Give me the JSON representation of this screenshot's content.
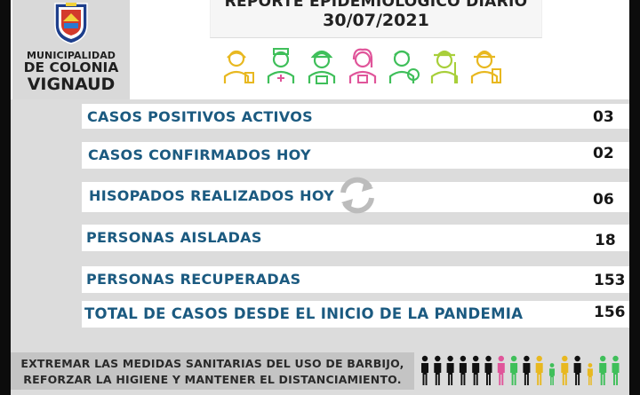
{
  "header": {
    "title_line1": "REPORTE EPIDEMIOLÓGICO DIARIO",
    "title_line2": "30/07/2021"
  },
  "logo": {
    "line1": "MUNICIPALIDAD",
    "line2": "DE COLONIA",
    "line3": "VIGNAUD",
    "emblem_icon": "municipal-shield-emblem"
  },
  "colors": {
    "label_blue": "#1b5a80",
    "value_dark": "#161616",
    "panel_gray": "#dcdcdc",
    "icon_yellow": "#e8b820",
    "icon_green": "#3fbf5a",
    "icon_pink": "#e0559a"
  },
  "worker_icons": [
    "worker-icon",
    "doctor-icon",
    "builder-icon",
    "nurse-icon",
    "medic-icon",
    "farmer-icon",
    "firefighter-icon"
  ],
  "stats": [
    {
      "label": "CASOS POSITIVOS ACTIVOS",
      "value": "03"
    },
    {
      "label": "CASOS CONFIRMADOS HOY",
      "value": "02"
    },
    {
      "label": "HISOPADOS REALIZADOS HOY",
      "value": "06"
    },
    {
      "label": "PERSONAS AISLADAS",
      "value": "18"
    },
    {
      "label": "PERSONAS RECUPERADAS",
      "value": "153"
    },
    {
      "label": "TOTAL DE CASOS DESDE EL INICIO DE LA PANDEMIA",
      "value": "156"
    }
  ],
  "footer": {
    "line1": "EXTREMAR LAS MEDIDAS SANITARIAS DEL USO DE BARBIJO,",
    "line2": "REFORZAR LA HIGIENE Y MANTENER EL DISTANCIAMIENTO."
  }
}
